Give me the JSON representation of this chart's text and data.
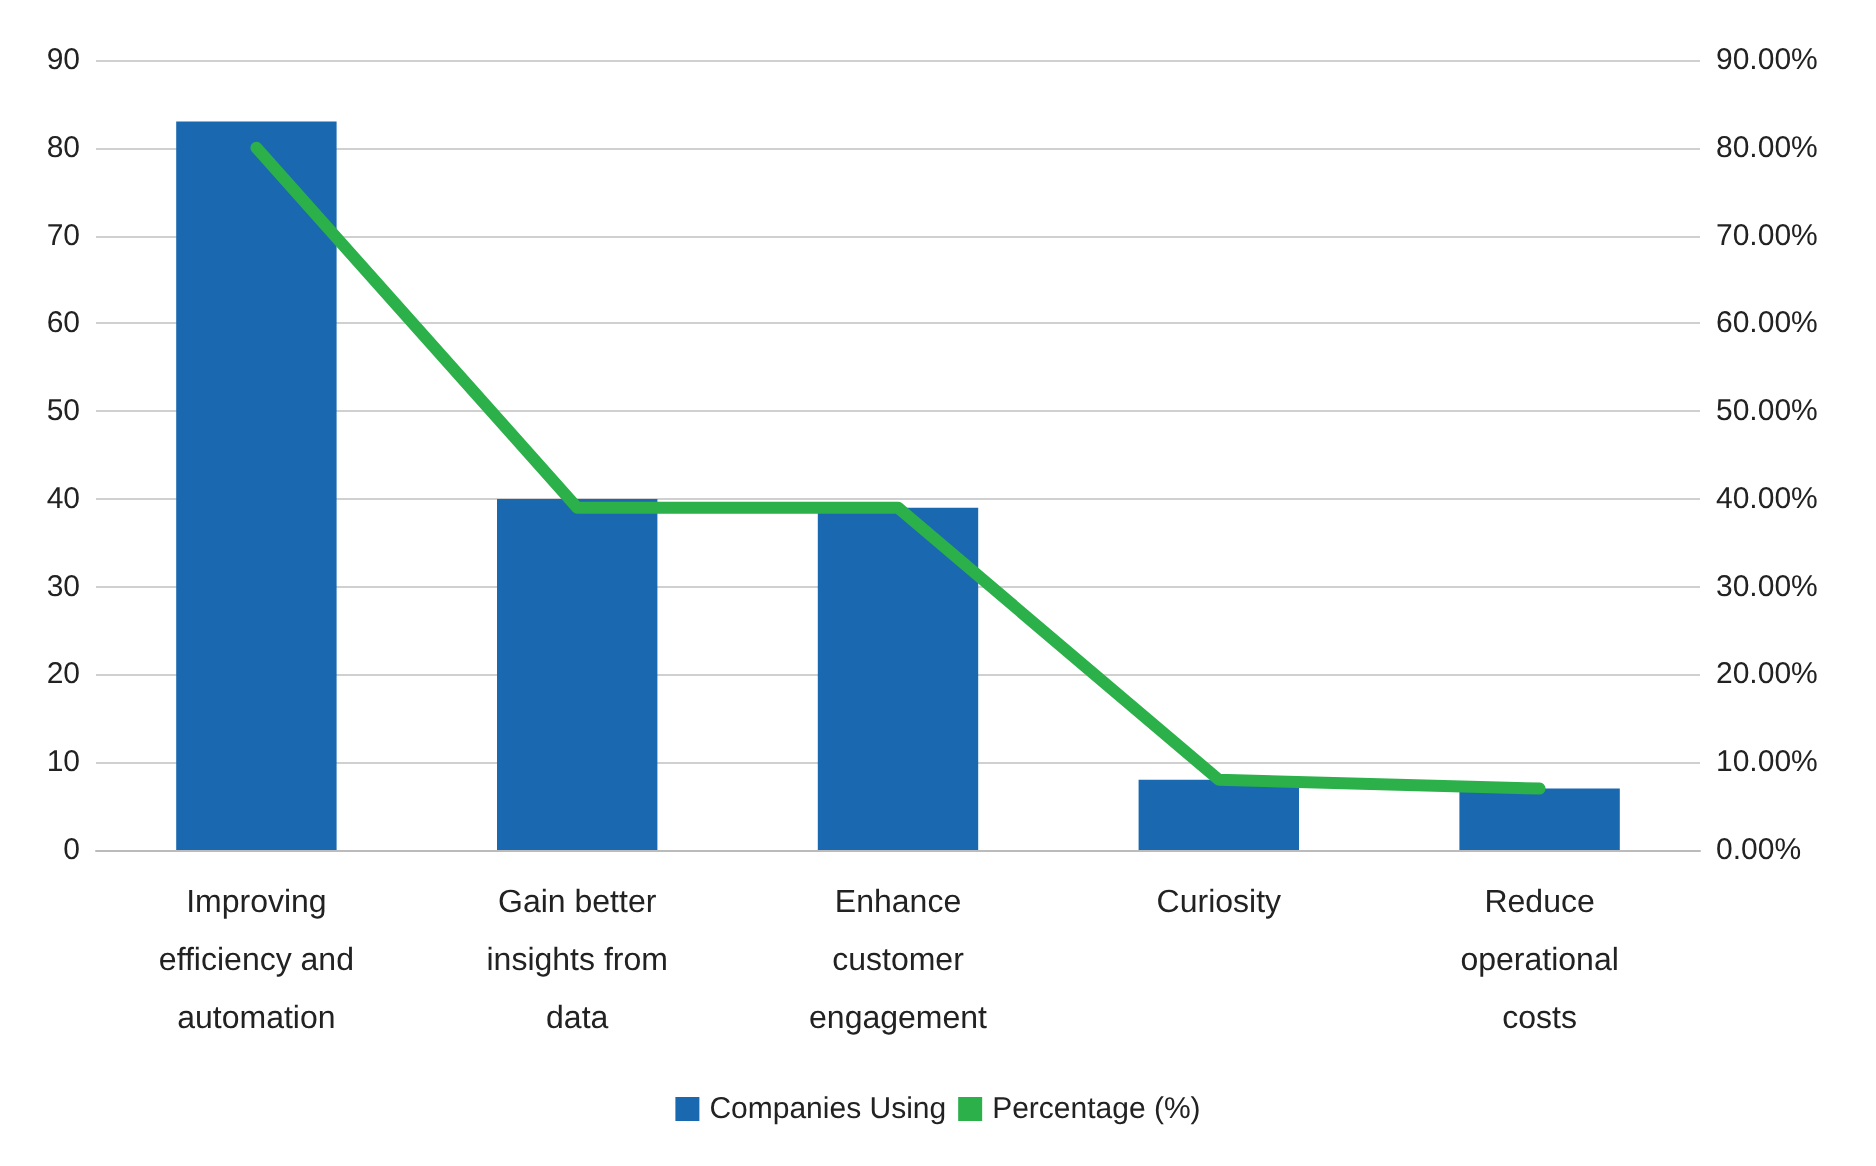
{
  "chart_data": {
    "type": "bar",
    "categories": [
      "Improving efficiency and automation",
      "Gain better insights from data",
      "Enhance customer engagement",
      "Curiosity",
      "Reduce operational costs"
    ],
    "series": [
      {
        "name": "Companies Using",
        "color": "#1a68b0",
        "values": [
          83,
          40,
          39,
          8,
          7
        ]
      },
      {
        "name": "Percentage (%)",
        "type": "line",
        "axis": "y2",
        "color": "#2bb04a",
        "values": [
          80,
          39,
          39,
          8,
          7
        ]
      }
    ],
    "ylim": [
      0,
      90
    ],
    "yticks": [
      0,
      10,
      20,
      30,
      40,
      50,
      60,
      70,
      80,
      90
    ],
    "y2lim": [
      0,
      90
    ],
    "y2ticks": [
      {
        "value": 0,
        "label": "0.00%"
      },
      {
        "value": 10,
        "label": "10.00%"
      },
      {
        "value": 20,
        "label": "20.00%"
      },
      {
        "value": 30,
        "label": "30.00%"
      },
      {
        "value": 40,
        "label": "40.00%"
      },
      {
        "value": 50,
        "label": "50.00%"
      },
      {
        "value": 60,
        "label": "60.00%"
      },
      {
        "value": 70,
        "label": "70.00%"
      },
      {
        "value": 80,
        "label": "80.00%"
      },
      {
        "value": 90,
        "label": "90.00%"
      }
    ],
    "grid": "y",
    "legend": "bottom",
    "marker": "none"
  }
}
